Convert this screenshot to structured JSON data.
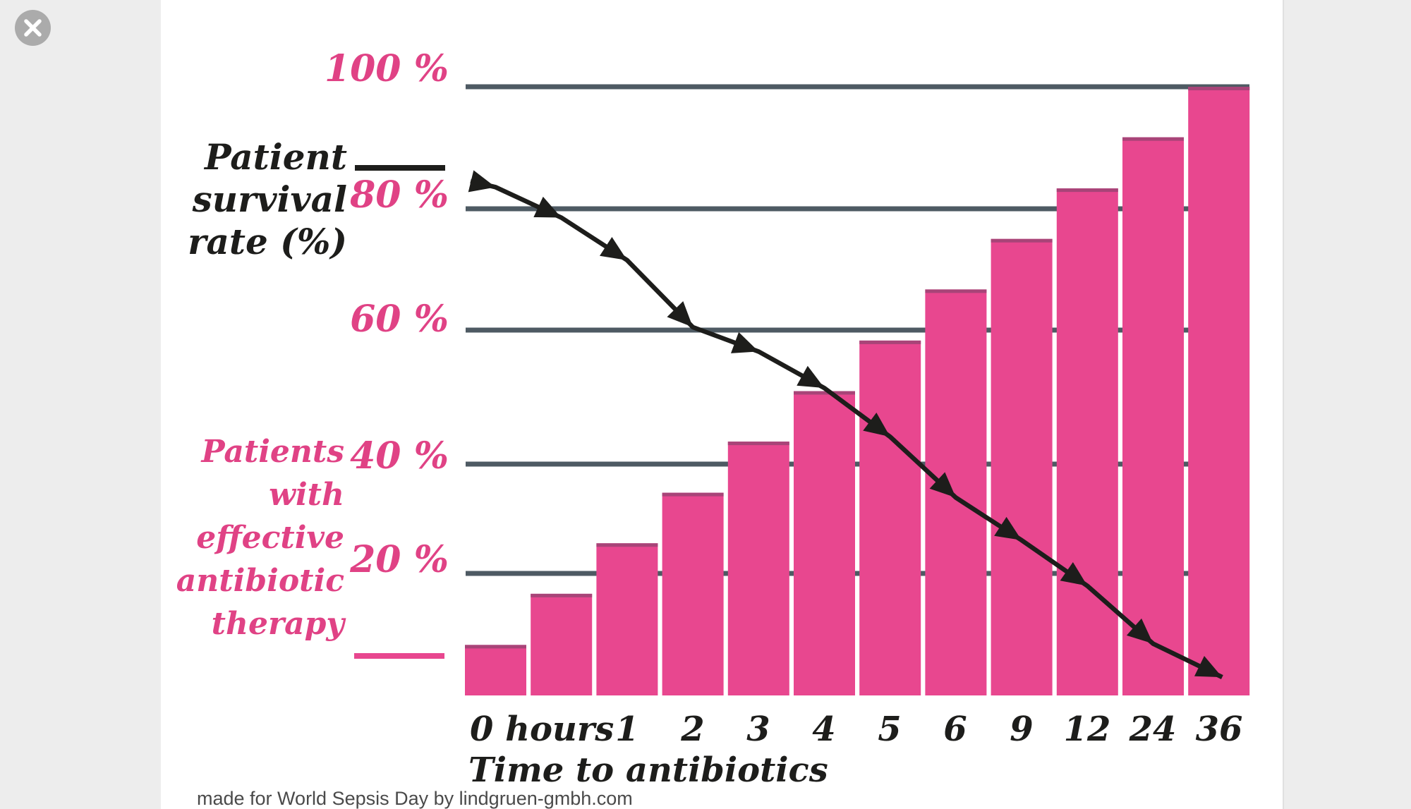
{
  "viewer": {
    "close_icon": "x-in-gray-circle",
    "background_color": "#ededed",
    "canvas_color": "#ffffff"
  },
  "chart_data": {
    "type": "combo-bar-line",
    "footer": "made for World Sepsis Day by lindgruen-gmbh.com",
    "x_axis": {
      "title": "Time to antibiotics",
      "tick_labels": [
        "0 hours",
        "1",
        "2",
        "3",
        "4",
        "5",
        "6",
        "9",
        "12",
        "24",
        "36"
      ]
    },
    "y_axis": {
      "tick_labels": [
        "100 %",
        "80 %",
        "60 %",
        "40 %",
        "20 %"
      ],
      "tick_values": [
        100,
        80,
        60,
        40,
        20
      ],
      "range": [
        0,
        100
      ],
      "gridlines": true,
      "gridline_color": "#4e5a63"
    },
    "left_labels": {
      "line_series": [
        "Patient",
        "survival",
        "rate (%)"
      ],
      "bar_series": [
        "Patients",
        "with",
        "effective",
        "antibiotic",
        "therapy"
      ]
    },
    "series": [
      {
        "name": "Patients with effective antibiotic therapy",
        "type": "bar",
        "color": "#e8478f",
        "bar_top_edge_color": "#a84478",
        "values_pct": [
          8.3,
          16.7,
          25,
          33.3,
          41.7,
          50,
          58.3,
          66.7,
          75,
          83.3,
          91.7,
          100
        ]
      },
      {
        "name": "Patient survival rate (%)",
        "type": "line",
        "color": "#1d1d1b",
        "marker": "arrow-triangle",
        "points": [
          {
            "i": -0.38,
            "pct": 84.5
          },
          {
            "i": 0,
            "pct": 83.5
          },
          {
            "i": 1,
            "pct": 78.5
          },
          {
            "i": 2,
            "pct": 71.5
          },
          {
            "i": 3,
            "pct": 60.5
          },
          {
            "i": 4,
            "pct": 56.5
          },
          {
            "i": 5,
            "pct": 50.5
          },
          {
            "i": 6,
            "pct": 42.5
          },
          {
            "i": 7,
            "pct": 32.5
          },
          {
            "i": 8,
            "pct": 25.5
          },
          {
            "i": 9,
            "pct": 18
          },
          {
            "i": 10,
            "pct": 8.5
          },
          {
            "i": 11.05,
            "pct": 3
          }
        ]
      }
    ]
  }
}
